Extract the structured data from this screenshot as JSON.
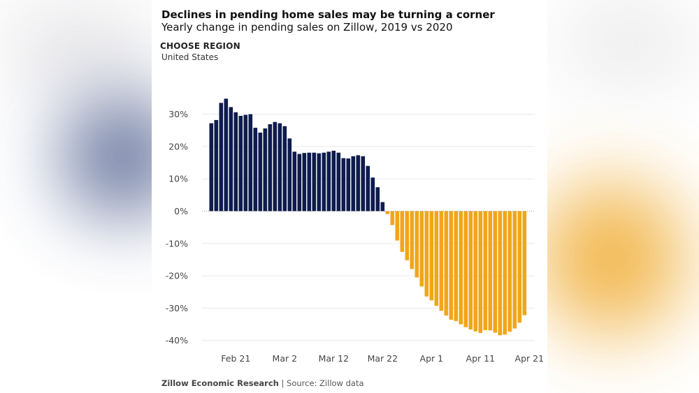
{
  "header": {
    "title": "Declines in pending home sales may be turning a corner",
    "subtitle": "Yearly change in pending sales on Zillow, 2019 vs 2020"
  },
  "region": {
    "label": "CHOOSE REGION",
    "value": "United States"
  },
  "footer": {
    "source_org": "Zillow Economic Research",
    "separator": "|",
    "source": "Source: Zillow data"
  },
  "chart_data": {
    "type": "bar",
    "title": "Declines in pending home sales may be turning a corner",
    "subtitle": "Yearly change in pending sales on Zillow, 2019 vs 2020",
    "x_start_date": "Feb 16",
    "x_tick_labels": [
      "Feb 21",
      "Mar 2",
      "Mar 12",
      "Mar 22",
      "Apr 1",
      "Apr 11",
      "Apr 21"
    ],
    "y_tick_labels": [
      "30%",
      "20%",
      "10%",
      "0%",
      "-10%",
      "-20%",
      "-30%",
      "-40%"
    ],
    "ylim": [
      -42,
      38
    ],
    "grid": true,
    "legend": "none",
    "colors": {
      "positive": "#0e1b4d",
      "negative": "#f0a61a",
      "grid": "#e8e8e8",
      "zero_line": "#999999"
    },
    "values": [
      27.2,
      28.2,
      33.5,
      34.8,
      32.2,
      30.6,
      29.5,
      29.8,
      30.0,
      25.8,
      24.3,
      25.6,
      26.9,
      27.6,
      27.2,
      26.3,
      22.5,
      18.4,
      17.7,
      18.0,
      18.1,
      18.1,
      17.9,
      18.1,
      18.4,
      18.7,
      18.1,
      16.4,
      16.3,
      17.0,
      17.3,
      17.0,
      14.0,
      10.4,
      7.4,
      2.8,
      -0.9,
      -4.3,
      -9.1,
      -12.6,
      -15.2,
      -17.9,
      -20.5,
      -23.3,
      -26.4,
      -27.6,
      -29.3,
      -30.8,
      -32.3,
      -33.6,
      -34.0,
      -35.0,
      -35.9,
      -36.6,
      -37.2,
      -37.7,
      -36.8,
      -36.9,
      -37.6,
      -38.4,
      -38.2,
      -37.3,
      -36.3,
      -34.5,
      -32.2
    ]
  }
}
